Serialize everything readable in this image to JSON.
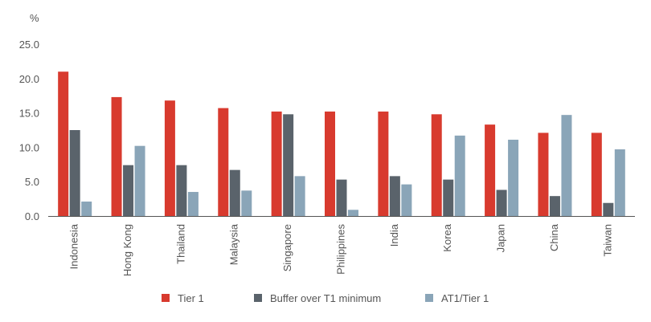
{
  "chart_data": {
    "type": "bar",
    "title": "",
    "xlabel": "",
    "ylabel": "%",
    "ylim": [
      0,
      25
    ],
    "yticks": [
      "0.0",
      "5.0",
      "10.0",
      "15.0",
      "20.0",
      "25.0"
    ],
    "ytick_values": [
      0,
      5,
      10,
      15,
      20,
      25
    ],
    "grid": false,
    "legend_position": "bottom",
    "categories": [
      "Indonesia",
      "Hong Kong",
      "Thailand",
      "Malaysia",
      "Singapore",
      "Philippines",
      "India",
      "Korea",
      "Japan",
      "China",
      "Taiwan"
    ],
    "series": [
      {
        "name": "Tier 1",
        "color": "#d83a2e",
        "values": [
          21.0,
          17.3,
          16.8,
          15.7,
          15.2,
          15.2,
          15.2,
          14.8,
          13.3,
          12.1,
          12.1
        ]
      },
      {
        "name": "Buffer over T1 minimum",
        "color": "#5a636b",
        "values": [
          12.5,
          7.4,
          7.4,
          6.7,
          14.8,
          5.3,
          5.8,
          5.3,
          3.8,
          2.9,
          1.9
        ]
      },
      {
        "name": "AT1/Tier 1",
        "color": "#8aa5b8",
        "values": [
          2.1,
          10.2,
          3.5,
          3.7,
          5.8,
          0.9,
          4.6,
          11.7,
          11.1,
          14.7,
          9.7
        ]
      }
    ]
  }
}
